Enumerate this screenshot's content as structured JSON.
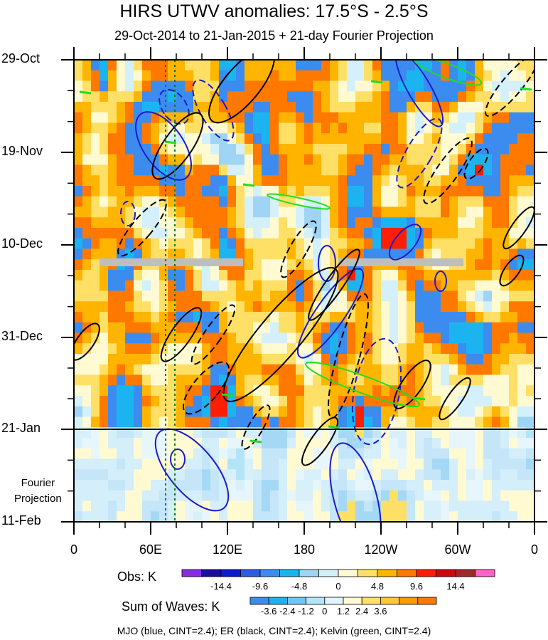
{
  "chart_data": {
    "type": "heatmap",
    "title": "HIRS UTWV anomalies: 17.5°S - 2.5°S",
    "subtitle": "29-Oct-2014 to 21-Jan-2015 + 21-day Fourier Projection",
    "y_tick_labels": [
      "29-Oct",
      "19-Nov",
      "10-Dec",
      "31-Dec",
      "21-Jan",
      "11-Feb"
    ],
    "x_tick_labels": [
      "0",
      "60E",
      "120E",
      "180",
      "120W",
      "60W",
      "0"
    ],
    "x_range": [
      0,
      360
    ],
    "projection_label_line1": "Fourier",
    "projection_label_line2": "Projection",
    "obs_legend": {
      "label": "Obs: K",
      "tick_labels": [
        "-14.4",
        "-9.6",
        "-4.8",
        "0",
        "4.8",
        "9.6",
        "14.4"
      ],
      "colors": [
        "#8a2be2",
        "#1a0d99",
        "#0a1ec8",
        "#2a5fe0",
        "#3c8cf0",
        "#1cb4f0",
        "#9fd4f5",
        "#d4f0fa",
        "#fffad2",
        "#ffe066",
        "#ffb400",
        "#ff7800",
        "#ff1e00",
        "#c80a0a",
        "#a02828",
        "#ff64c8"
      ]
    },
    "waves_legend": {
      "label": "Sum of Waves: K",
      "tick_labels": [
        "-3.6",
        "-2.4",
        "-1.2",
        "0",
        "1.2",
        "2.4",
        "3.6"
      ],
      "colors": [
        "#3c8cf0",
        "#1cb4f0",
        "#6cc8f2",
        "#b4e4f8",
        "#e0f5fb",
        "#fffad2",
        "#ffe066",
        "#ffc832",
        "#ff9a00",
        "#ff7800"
      ]
    },
    "contours_caption": "MJO (blue, CINT=2.4); ER (black, CINT=2.4); Kelvin (green, CINT=2.4)",
    "mjo_color": "#1a1acc",
    "er_color": "#000000",
    "kelvin_color": "#22dd22"
  }
}
